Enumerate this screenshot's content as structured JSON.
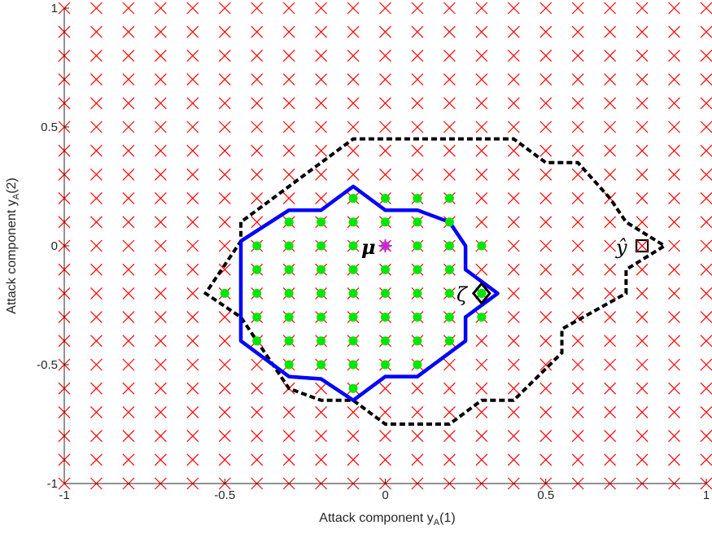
{
  "chart_data": {
    "type": "scatter",
    "xlabel": "Attack component y",
    "xlabel_sub": "A",
    "xlabel_suffix": "(1)",
    "ylabel": "Attack component y",
    "ylabel_sub": "A",
    "ylabel_suffix": "(2)",
    "xlim": [
      -1,
      1
    ],
    "ylim": [
      -1,
      1
    ],
    "xticks": [
      -1,
      -0.5,
      0,
      0.5,
      1
    ],
    "yticks": [
      -1,
      -0.5,
      0,
      0.5,
      1
    ],
    "xtick_labels": [
      "-1",
      "-0.5",
      "0",
      "0.5",
      "1"
    ],
    "ytick_labels": [
      "-1",
      "-0.5",
      "0",
      "0.5",
      "1"
    ],
    "grid": false,
    "colors": {
      "cross": "#ff0000",
      "dot": "#00e600",
      "solid_boundary": "#0000ff",
      "dashed_boundary": "#000000",
      "mu_marker": "#ff00ff"
    },
    "cross_grid": {
      "start": -1,
      "stop": 1,
      "step": 0.1
    },
    "dot_points": [
      [
        -0.1,
        0.2
      ],
      [
        0,
        0.2
      ],
      [
        0.1,
        0.2
      ],
      [
        0.2,
        0.2
      ],
      [
        -0.3,
        0.1
      ],
      [
        -0.2,
        0.1
      ],
      [
        -0.1,
        0.1
      ],
      [
        0,
        0.1
      ],
      [
        0.1,
        0.1
      ],
      [
        0.2,
        0.1
      ],
      [
        -0.4,
        0
      ],
      [
        -0.3,
        0
      ],
      [
        -0.2,
        0
      ],
      [
        -0.1,
        0
      ],
      [
        0.1,
        0
      ],
      [
        0.2,
        0
      ],
      [
        0.3,
        0
      ],
      [
        -0.4,
        -0.1
      ],
      [
        -0.3,
        -0.1
      ],
      [
        -0.2,
        -0.1
      ],
      [
        -0.1,
        -0.1
      ],
      [
        0,
        -0.1
      ],
      [
        0.1,
        -0.1
      ],
      [
        0.2,
        -0.1
      ],
      [
        -0.5,
        -0.2
      ],
      [
        -0.4,
        -0.2
      ],
      [
        -0.3,
        -0.2
      ],
      [
        -0.2,
        -0.2
      ],
      [
        -0.1,
        -0.2
      ],
      [
        0,
        -0.2
      ],
      [
        0.1,
        -0.2
      ],
      [
        0.2,
        -0.2
      ],
      [
        0.3,
        -0.2
      ],
      [
        -0.4,
        -0.3
      ],
      [
        -0.3,
        -0.3
      ],
      [
        -0.2,
        -0.3
      ],
      [
        -0.1,
        -0.3
      ],
      [
        0,
        -0.3
      ],
      [
        0.1,
        -0.3
      ],
      [
        0.2,
        -0.3
      ],
      [
        0.3,
        -0.3
      ],
      [
        -0.4,
        -0.4
      ],
      [
        -0.3,
        -0.4
      ],
      [
        -0.2,
        -0.4
      ],
      [
        -0.1,
        -0.4
      ],
      [
        0,
        -0.4
      ],
      [
        0.1,
        -0.4
      ],
      [
        0.2,
        -0.4
      ],
      [
        -0.3,
        -0.5
      ],
      [
        -0.2,
        -0.5
      ],
      [
        -0.1,
        -0.5
      ],
      [
        0,
        -0.5
      ],
      [
        0.1,
        -0.5
      ],
      [
        -0.1,
        -0.6
      ]
    ],
    "solid_boundary": [
      [
        -0.45,
        0.02
      ],
      [
        -0.45,
        -0.4
      ],
      [
        -0.3,
        -0.55
      ],
      [
        -0.2,
        -0.56
      ],
      [
        -0.1,
        -0.65
      ],
      [
        0,
        -0.55
      ],
      [
        0.1,
        -0.55
      ],
      [
        0.25,
        -0.4
      ],
      [
        0.25,
        -0.3
      ],
      [
        0.35,
        -0.2
      ],
      [
        0.25,
        -0.1
      ],
      [
        0.25,
        0
      ],
      [
        0.2,
        0.1
      ],
      [
        0.1,
        0.15
      ],
      [
        0,
        0.15
      ],
      [
        -0.1,
        0.25
      ],
      [
        -0.2,
        0.15
      ],
      [
        -0.3,
        0.15
      ],
      [
        -0.45,
        0.02
      ]
    ],
    "dashed_boundary": [
      [
        -0.45,
        0.1
      ],
      [
        -0.45,
        0.02
      ],
      [
        -0.56,
        -0.2
      ],
      [
        -0.45,
        -0.3
      ],
      [
        -0.3,
        -0.6
      ],
      [
        -0.2,
        -0.65
      ],
      [
        -0.1,
        -0.65
      ],
      [
        0,
        -0.75
      ],
      [
        0.2,
        -0.75
      ],
      [
        0.3,
        -0.65
      ],
      [
        0.4,
        -0.65
      ],
      [
        0.55,
        -0.45
      ],
      [
        0.55,
        -0.35
      ],
      [
        0.75,
        -0.2
      ],
      [
        0.75,
        -0.1
      ],
      [
        0.87,
        0
      ],
      [
        0.75,
        0.1
      ],
      [
        0.7,
        0.2
      ],
      [
        0.6,
        0.35
      ],
      [
        0.5,
        0.35
      ],
      [
        0.4,
        0.45
      ],
      [
        -0.1,
        0.45
      ],
      [
        -0.45,
        0.1
      ]
    ],
    "markers": {
      "mu": {
        "label": "μ",
        "x": 0,
        "y": 0
      },
      "zeta": {
        "label": "ζ",
        "x": 0.3,
        "y": -0.2
      },
      "yhat": {
        "label": "ŷ",
        "x": 0.8,
        "y": 0
      }
    }
  }
}
